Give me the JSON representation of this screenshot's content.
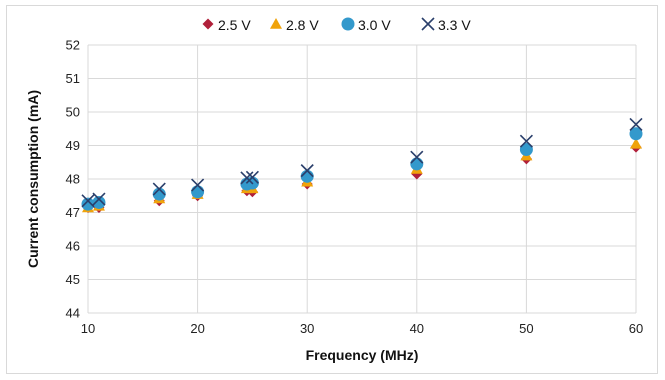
{
  "chart_data": {
    "type": "scatter",
    "title": "",
    "xlabel": "Frequency (MHz)",
    "ylabel": "Current consumption (mA)",
    "xlim": [
      10,
      60
    ],
    "ylim": [
      44,
      52
    ],
    "xticks": [
      10,
      20,
      30,
      40,
      50,
      60
    ],
    "yticks": [
      44,
      45,
      46,
      47,
      48,
      49,
      50,
      51,
      52
    ],
    "grid": true,
    "legend": "top",
    "series": [
      {
        "name": "2.5 V",
        "marker": "diamond-icon",
        "color": "#b0203a",
        "x": [
          10,
          11,
          16.5,
          20,
          24.5,
          25,
          30,
          40,
          50,
          60
        ],
        "y": [
          47.15,
          47.15,
          47.35,
          47.5,
          47.65,
          47.62,
          47.85,
          48.15,
          48.6,
          48.95
        ]
      },
      {
        "name": "2.8 V",
        "marker": "triangle-icon",
        "color": "#f0a30a",
        "x": [
          10,
          11,
          16.5,
          20,
          24.5,
          25,
          30,
          40,
          50,
          60
        ],
        "y": [
          47.15,
          47.2,
          47.42,
          47.55,
          47.72,
          47.72,
          47.92,
          48.3,
          48.7,
          49.05
        ]
      },
      {
        "name": "3.0 V",
        "marker": "circle-icon",
        "color": "#3399cc",
        "x": [
          10,
          11,
          16.5,
          20,
          24.5,
          25,
          30,
          40,
          50,
          60
        ],
        "y": [
          47.25,
          47.3,
          47.55,
          47.62,
          47.85,
          47.88,
          48.08,
          48.45,
          48.88,
          49.35
        ]
      },
      {
        "name": "3.3 V",
        "marker": "x-icon",
        "color": "#2a3f6b",
        "x": [
          10,
          11,
          16.5,
          20,
          24.5,
          25,
          30,
          40,
          50,
          60
        ],
        "y": [
          47.35,
          47.4,
          47.7,
          47.82,
          48.03,
          48.05,
          48.25,
          48.65,
          49.13,
          49.63
        ]
      }
    ]
  }
}
